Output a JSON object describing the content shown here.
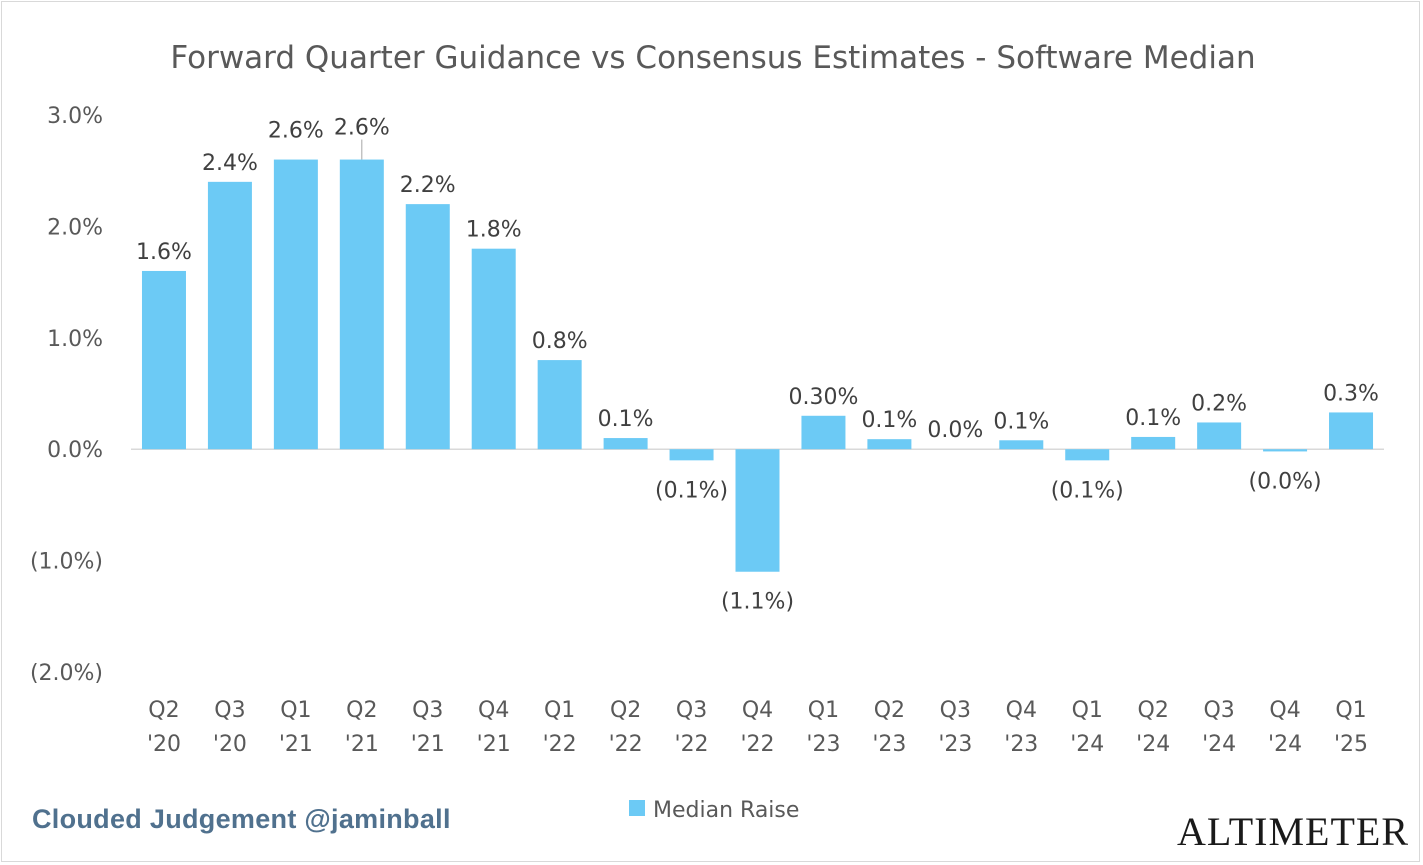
{
  "chart_data": {
    "type": "bar",
    "title": "Forward Quarter Guidance vs Consensus Estimates - Software Median",
    "xlabel": "",
    "ylabel": "",
    "categories": [
      [
        "Q2",
        "'20"
      ],
      [
        "Q3",
        "'20"
      ],
      [
        "Q1",
        "'21"
      ],
      [
        "Q2",
        "'21"
      ],
      [
        "Q3",
        "'21"
      ],
      [
        "Q4",
        "'21"
      ],
      [
        "Q1",
        "'22"
      ],
      [
        "Q2",
        "'22"
      ],
      [
        "Q3",
        "'22"
      ],
      [
        "Q4",
        "'22"
      ],
      [
        "Q1",
        "'23"
      ],
      [
        "Q2",
        "'23"
      ],
      [
        "Q3",
        "'23"
      ],
      [
        "Q4",
        "'23"
      ],
      [
        "Q1",
        "'24"
      ],
      [
        "Q2",
        "'24"
      ],
      [
        "Q3",
        "'24"
      ],
      [
        "Q4",
        "'24"
      ],
      [
        "Q1",
        "'25"
      ]
    ],
    "series": [
      {
        "name": "Median Raise",
        "values": [
          1.6,
          2.4,
          2.6,
          2.6,
          2.2,
          1.8,
          0.8,
          0.1,
          -0.1,
          -1.1,
          0.3,
          0.09,
          0.0,
          0.08,
          -0.1,
          0.11,
          0.24,
          -0.02,
          0.33
        ],
        "labels": [
          "1.6%",
          "2.4%",
          "2.6%",
          "2.6%",
          "2.2%",
          "1.8%",
          "0.8%",
          "0.1%",
          "(0.1%)",
          "(1.1%)",
          "0.30%",
          "0.1%",
          "0.0%",
          "0.1%",
          "(0.1%)",
          "0.1%",
          "0.2%",
          "(0.0%)",
          "0.3%"
        ]
      }
    ],
    "ylim": [
      -2.0,
      3.0
    ],
    "yticks": [
      3.0,
      2.0,
      1.0,
      0.0,
      -1.0,
      -2.0
    ],
    "ytick_labels": [
      "3.0%",
      "2.0%",
      "1.0%",
      "0.0%",
      "(1.0%)",
      "(2.0%)"
    ],
    "grid": false,
    "legend_position": "bottom-center",
    "colors": {
      "bar": "#6ccaf5",
      "axis": "#d9d9d9"
    }
  },
  "footer": {
    "left_text": "Clouded Judgement @jaminball",
    "right_logo": "ALTIMETER"
  }
}
